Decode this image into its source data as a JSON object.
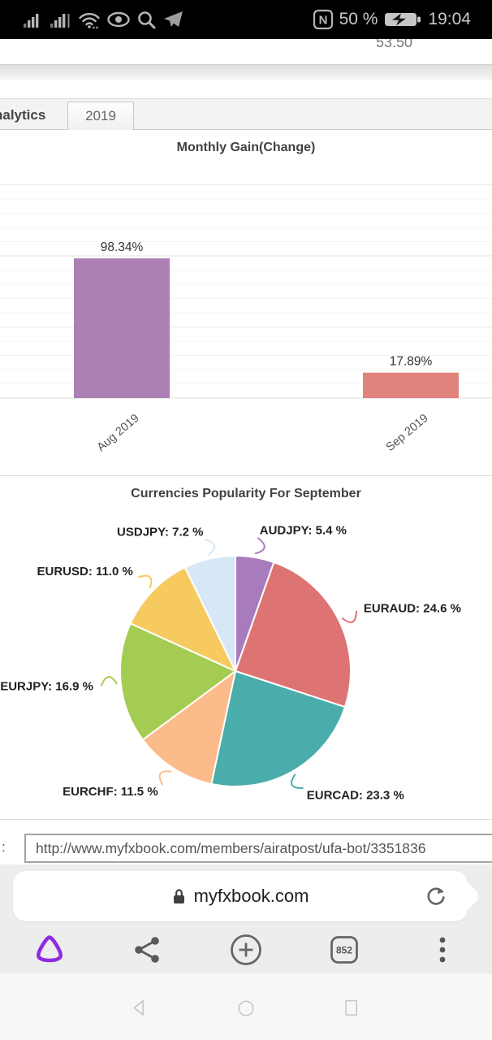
{
  "status_bar": {
    "time": "19:04",
    "battery_percent": "50 %",
    "left_icons": [
      "signal-icon",
      "signal-icon",
      "wifi-icon",
      "eye-icon",
      "search-icon",
      "telegram-icon"
    ],
    "right_icons": [
      "nfc-icon",
      "battery-charging-icon"
    ]
  },
  "page_top": {
    "partial_row_value": "53.50"
  },
  "tabs": [
    {
      "label": "nalytics",
      "active": false
    },
    {
      "label": "2019",
      "active": true
    }
  ],
  "chart_data": [
    {
      "type": "bar",
      "title": "Monthly Gain(Change)",
      "categories": [
        "Aug 2019",
        "Sep 2019"
      ],
      "values": [
        98.34,
        17.89
      ],
      "value_labels": [
        "98.34%",
        "17.89%"
      ],
      "bar_colors": [
        "#ad80b5",
        "#e0837c"
      ],
      "xlabel": "",
      "ylabel": "",
      "ylim": [
        0,
        155
      ],
      "grid_step": 10,
      "major_step": 50,
      "grid": true,
      "legend": false
    },
    {
      "type": "pie",
      "title": "Currencies Popularity For September",
      "labels": [
        "AUDJPY",
        "EURAUD",
        "EURCAD",
        "EURCHF",
        "EURJPY",
        "EURUSD",
        "USDJPY"
      ],
      "values": [
        5.4,
        24.6,
        23.3,
        11.5,
        16.9,
        11.0,
        7.2
      ],
      "label_texts": [
        "AUDJPY: 5.4 %",
        "EURAUD: 24.6 %",
        "EURCAD: 23.3 %",
        "EURCHF: 11.5 %",
        "EURJPY: 16.9 %",
        "EURUSD: 11.0 %",
        "USDJPY: 7.2 %"
      ],
      "colors": [
        "#a87cbc",
        "#dd7373",
        "#4aacab",
        "#fbbb8b",
        "#a5cc52",
        "#f6ca5f",
        "#d6e7f8"
      ],
      "start_angle": 0,
      "direction": "clockwise",
      "legend": false
    }
  ],
  "url_row": {
    "label": ":",
    "value": "http://www.myfxbook.com/members/airatpost/ufa-bot/3351836"
  },
  "browser": {
    "address": "myfxbook.com",
    "tab_count": "852",
    "toolbar_icons": [
      "alice-icon",
      "share-icon",
      "new-tab-icon",
      "tabs-counter",
      "kebab-menu-icon"
    ]
  },
  "navbar": {
    "icons": [
      "back-icon",
      "home-icon",
      "recents-icon"
    ]
  },
  "colors": {
    "accent_purple": "#8f2be0",
    "bar_purple": "#ad80b5",
    "bar_red": "#e0837c",
    "grid_minor": "#f4f4f4",
    "grid_major": "#e6e6e6"
  }
}
